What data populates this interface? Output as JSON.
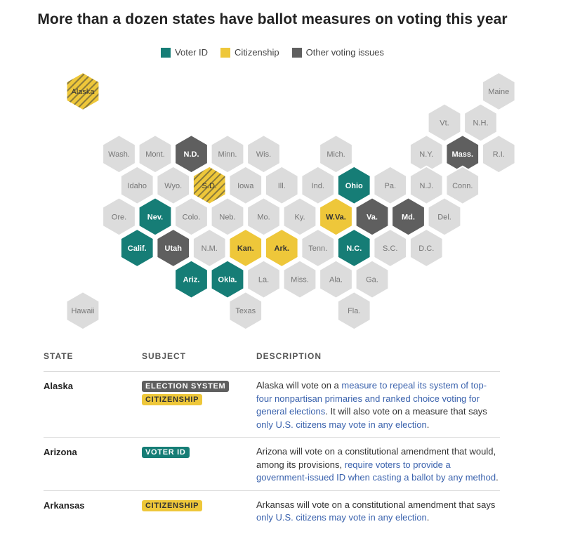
{
  "title": "More than a dozen states have ballot measures on voting this year",
  "legend": [
    {
      "label": "Voter ID",
      "color": "#167d76"
    },
    {
      "label": "Citizenship",
      "color": "#eec73a"
    },
    {
      "label": "Other voting issues",
      "color": "#5f5f5f"
    }
  ],
  "colors": {
    "voter_id": "#167d76",
    "citizenship": "#eec73a",
    "other": "#5f5f5f",
    "none": "#dcdcdc",
    "stripe": "#8a7a3a",
    "link": "#3a62ad"
  },
  "map": {
    "states": [
      {
        "label": "Alaska",
        "row": 0,
        "col": 0,
        "cat": "citizenship",
        "pattern": "stripes"
      },
      {
        "label": "Maine",
        "row": 0,
        "col": 11.5,
        "cat": "none"
      },
      {
        "label": "Vt.",
        "row": 1,
        "col": 10,
        "cat": "none"
      },
      {
        "label": "N.H.",
        "row": 1,
        "col": 11,
        "cat": "none"
      },
      {
        "label": "Wash.",
        "row": 2,
        "col": 1,
        "cat": "none"
      },
      {
        "label": "Mont.",
        "row": 2,
        "col": 2,
        "cat": "none"
      },
      {
        "label": "N.D.",
        "row": 2,
        "col": 3,
        "cat": "other"
      },
      {
        "label": "Minn.",
        "row": 2,
        "col": 4,
        "cat": "none"
      },
      {
        "label": "Wis.",
        "row": 2,
        "col": 5,
        "cat": "none"
      },
      {
        "label": "Mich.",
        "row": 2,
        "col": 7,
        "cat": "none"
      },
      {
        "label": "N.Y.",
        "row": 2,
        "col": 9.5,
        "cat": "none"
      },
      {
        "label": "Mass.",
        "row": 2,
        "col": 10.5,
        "cat": "other"
      },
      {
        "label": "R.I.",
        "row": 2,
        "col": 11.5,
        "cat": "none"
      },
      {
        "label": "Idaho",
        "row": 3,
        "col": 1.5,
        "cat": "none"
      },
      {
        "label": "Wyo.",
        "row": 3,
        "col": 2.5,
        "cat": "none"
      },
      {
        "label": "S.D.",
        "row": 3,
        "col": 3.5,
        "cat": "citizenship",
        "pattern": "stripes"
      },
      {
        "label": "Iowa",
        "row": 3,
        "col": 4.5,
        "cat": "none"
      },
      {
        "label": "Ill.",
        "row": 3,
        "col": 5.5,
        "cat": "none"
      },
      {
        "label": "Ind.",
        "row": 3,
        "col": 6.5,
        "cat": "none"
      },
      {
        "label": "Ohio",
        "row": 3,
        "col": 7.5,
        "cat": "voter_id"
      },
      {
        "label": "Pa.",
        "row": 3,
        "col": 8.5,
        "cat": "none"
      },
      {
        "label": "N.J.",
        "row": 3,
        "col": 9.5,
        "cat": "none"
      },
      {
        "label": "Conn.",
        "row": 3,
        "col": 10.5,
        "cat": "none"
      },
      {
        "label": "Ore.",
        "row": 4,
        "col": 1,
        "cat": "none"
      },
      {
        "label": "Nev.",
        "row": 4,
        "col": 2,
        "cat": "voter_id"
      },
      {
        "label": "Colo.",
        "row": 4,
        "col": 3,
        "cat": "none"
      },
      {
        "label": "Neb.",
        "row": 4,
        "col": 4,
        "cat": "none"
      },
      {
        "label": "Mo.",
        "row": 4,
        "col": 5,
        "cat": "none"
      },
      {
        "label": "Ky.",
        "row": 4,
        "col": 6,
        "cat": "none"
      },
      {
        "label": "W.Va.",
        "row": 4,
        "col": 7,
        "cat": "citizenship"
      },
      {
        "label": "Va.",
        "row": 4,
        "col": 8,
        "cat": "other"
      },
      {
        "label": "Md.",
        "row": 4,
        "col": 9,
        "cat": "other"
      },
      {
        "label": "Del.",
        "row": 4,
        "col": 10,
        "cat": "none"
      },
      {
        "label": "Calif.",
        "row": 5,
        "col": 1.5,
        "cat": "voter_id"
      },
      {
        "label": "Utah",
        "row": 5,
        "col": 2.5,
        "cat": "other"
      },
      {
        "label": "N.M.",
        "row": 5,
        "col": 3.5,
        "cat": "none"
      },
      {
        "label": "Kan.",
        "row": 5,
        "col": 4.5,
        "cat": "citizenship"
      },
      {
        "label": "Ark.",
        "row": 5,
        "col": 5.5,
        "cat": "citizenship"
      },
      {
        "label": "Tenn.",
        "row": 5,
        "col": 6.5,
        "cat": "none"
      },
      {
        "label": "N.C.",
        "row": 5,
        "col": 7.5,
        "cat": "voter_id"
      },
      {
        "label": "S.C.",
        "row": 5,
        "col": 8.5,
        "cat": "none"
      },
      {
        "label": "D.C.",
        "row": 5,
        "col": 9.5,
        "cat": "none"
      },
      {
        "label": "Ariz.",
        "row": 6,
        "col": 3,
        "cat": "voter_id"
      },
      {
        "label": "Okla.",
        "row": 6,
        "col": 4,
        "cat": "voter_id"
      },
      {
        "label": "La.",
        "row": 6,
        "col": 5,
        "cat": "none"
      },
      {
        "label": "Miss.",
        "row": 6,
        "col": 6,
        "cat": "none"
      },
      {
        "label": "Ala.",
        "row": 6,
        "col": 7,
        "cat": "none"
      },
      {
        "label": "Ga.",
        "row": 6,
        "col": 8,
        "cat": "none"
      },
      {
        "label": "Hawaii",
        "row": 7,
        "col": 0,
        "cat": "none"
      },
      {
        "label": "Texas",
        "row": 7,
        "col": 4.5,
        "cat": "none"
      },
      {
        "label": "Fla.",
        "row": 7,
        "col": 7.5,
        "cat": "none"
      }
    ]
  },
  "table": {
    "headers": {
      "state": "STATE",
      "subject": "SUBJECT",
      "description": "DESCRIPTION"
    },
    "rows": [
      {
        "state": "Alaska",
        "badges": [
          {
            "label": "ELECTION SYSTEM",
            "cat": "other"
          },
          {
            "label": "CITIZENSHIP",
            "cat": "citizen"
          }
        ],
        "description": [
          {
            "text": "Alaska will vote on a "
          },
          {
            "text": "measure to repeal its system of top-four nonpartisan primaries and ranked choice voting for general elections",
            "link": true
          },
          {
            "text": ". It will also vote on a measure that says "
          },
          {
            "text": "only U.S. citizens may vote in any election",
            "link": true
          },
          {
            "text": "."
          }
        ]
      },
      {
        "state": "Arizona",
        "badges": [
          {
            "label": "VOTER ID",
            "cat": "voter"
          }
        ],
        "description": [
          {
            "text": "Arizona will vote on a constitutional amendment that would, among its provisions, "
          },
          {
            "text": "require voters to provide a government-issued ID when casting a ballot by any method",
            "link": true
          },
          {
            "text": "."
          }
        ]
      },
      {
        "state": "Arkansas",
        "badges": [
          {
            "label": "CITIZENSHIP",
            "cat": "citizen"
          }
        ],
        "description": [
          {
            "text": "Arkansas will vote on a constitutional amendment that says "
          },
          {
            "text": "only U.S. citizens may vote in any election",
            "link": true
          },
          {
            "text": "."
          }
        ]
      }
    ]
  }
}
